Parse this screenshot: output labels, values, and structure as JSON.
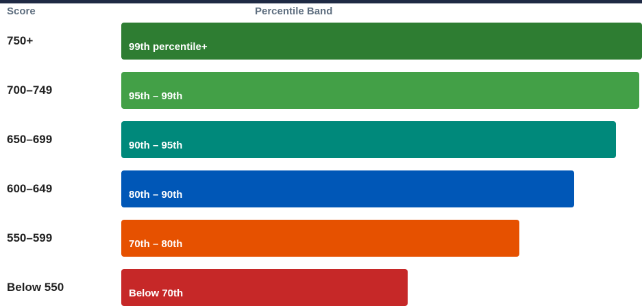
{
  "header": {
    "score": "Score",
    "band": "Percentile Band"
  },
  "chart_data": {
    "type": "bar",
    "orientation": "horizontal",
    "categories": [
      "750+",
      "700–749",
      "650–699",
      "600–649",
      "550–599",
      "Below 550"
    ],
    "bar_labels": [
      "99th percentile+",
      "95th – 99th",
      "90th – 95th",
      "80th – 90th",
      "70th – 80th",
      "Below 70th"
    ],
    "values": [
      100,
      99.5,
      95,
      87,
      76.5,
      55
    ],
    "colors": [
      "#2e7d32",
      "#43a047",
      "#00897b",
      "#0057b7",
      "#e65100",
      "#c62828"
    ],
    "title": "",
    "xlabel": "",
    "ylabel": "",
    "xlim": [
      0,
      100
    ]
  }
}
